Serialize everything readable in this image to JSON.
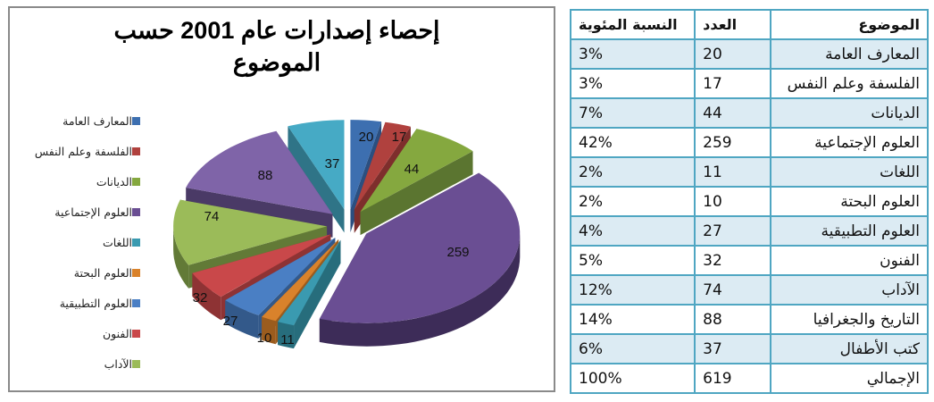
{
  "chart_data": {
    "type": "pie",
    "title": "إحصاء إصدارات عام 2001 حسب الموضوع",
    "categories": [
      "المعارف العامة",
      "الفلسفة وعلم النفس",
      "الديانات",
      "العلوم الإجتماعية",
      "اللغات",
      "العلوم البحتة",
      "العلوم التطبيقية",
      "الفنون",
      "الآداب",
      "التاريخ والجغرافيا",
      "كتب الأطفال"
    ],
    "values": [
      20,
      17,
      44,
      259,
      11,
      10,
      27,
      32,
      74,
      88,
      37
    ],
    "colors": [
      "#3d6fb0",
      "#b0413e",
      "#85a83f",
      "#6a4e93",
      "#3a9ab0",
      "#d9822b",
      "#4a7fc4",
      "#c9484a",
      "#9bbb59",
      "#7f64a8",
      "#46aac5"
    ],
    "side_colors": [
      "#2b4f80",
      "#7e2e2c",
      "#5b7530",
      "#3d2c58",
      "#276d7c",
      "#9b5c1e",
      "#33598a",
      "#8e3334",
      "#627a37",
      "#4a3a66",
      "#2f7487"
    ],
    "style": "3d exploded pie",
    "data_labels": true,
    "legend_position": "left",
    "legend_visible_entries": [
      "المعارف العامة",
      "الفلسفة وعلم النفس",
      "الديانات",
      "العلوم الإجتماعية",
      "اللغات",
      "العلوم البحتة",
      "العلوم التطبيقية",
      "الفنون",
      "الآداب"
    ]
  },
  "chart": {
    "title_line1": "إحصاء إصدارات عام 2001 حسب",
    "title_line2": "الموضوع",
    "legend": [
      {
        "label": "المعارف العامة",
        "color": "#3d6fb0"
      },
      {
        "label": "الفلسفة وعلم النفس",
        "color": "#b0413e"
      },
      {
        "label": "الديانات",
        "color": "#85a83f"
      },
      {
        "label": "العلوم الإجتماعية",
        "color": "#6a4e93"
      },
      {
        "label": "اللغات",
        "color": "#3a9ab0"
      },
      {
        "label": "العلوم البحتة",
        "color": "#d9822b"
      },
      {
        "label": "العلوم التطبيقية",
        "color": "#4a7fc4"
      },
      {
        "label": "الفنون",
        "color": "#c9484a"
      },
      {
        "label": "الآداب",
        "color": "#9bbb59"
      }
    ]
  },
  "table": {
    "headers": {
      "subject": "الموضوع",
      "count": "العدد",
      "percent": "النسبة المئوية"
    },
    "rows": [
      {
        "subject": "المعارف العامة",
        "count": "20",
        "percent": "3%"
      },
      {
        "subject": "الفلسفة وعلم النفس",
        "count": "17",
        "percent": "3%"
      },
      {
        "subject": "الديانات",
        "count": "44",
        "percent": "7%"
      },
      {
        "subject": "العلوم الإجتماعية",
        "count": "259",
        "percent": "42%"
      },
      {
        "subject": "اللغات",
        "count": "11",
        "percent": "2%"
      },
      {
        "subject": "العلوم البحتة",
        "count": "10",
        "percent": "2%"
      },
      {
        "subject": "العلوم التطبيقية",
        "count": "27",
        "percent": "4%"
      },
      {
        "subject": "الفنون",
        "count": "32",
        "percent": "5%"
      },
      {
        "subject": "الآداب",
        "count": "74",
        "percent": "12%"
      },
      {
        "subject": "التاريخ والجغرافيا",
        "count": "88",
        "percent": "14%"
      },
      {
        "subject": "كتب الأطفال",
        "count": "37",
        "percent": "6%"
      },
      {
        "subject": "الإجمالي",
        "count": "619",
        "percent": "100%"
      }
    ]
  }
}
